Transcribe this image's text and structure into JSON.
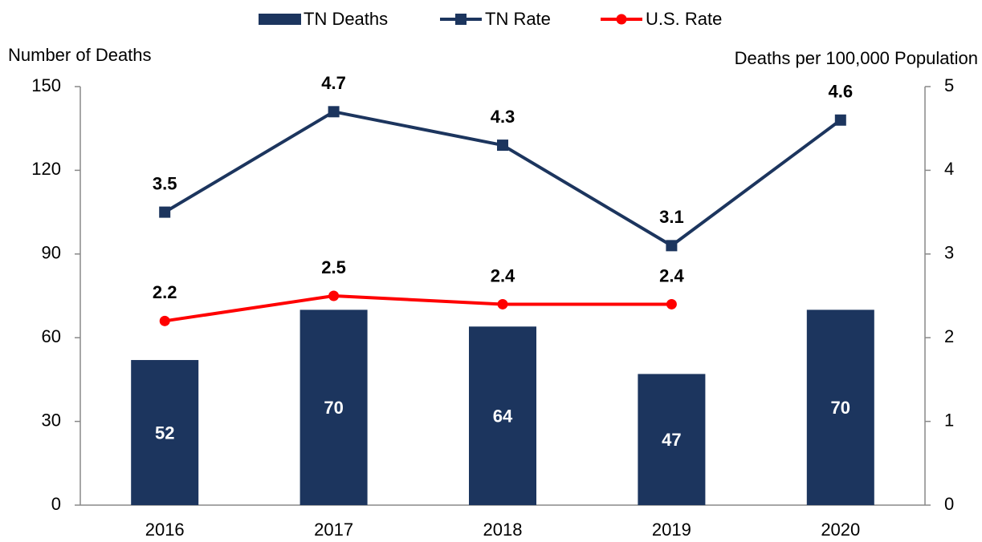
{
  "chart_data": {
    "type": "combo",
    "categories": [
      "2016",
      "2017",
      "2018",
      "2019",
      "2020"
    ],
    "ylabel": "Number of Deaths",
    "y2label": "Deaths per 100,000 Population",
    "ylim": [
      0,
      150
    ],
    "yticks": [
      0,
      30,
      60,
      90,
      120,
      150
    ],
    "y2lim": [
      0,
      5
    ],
    "y2ticks": [
      0,
      1,
      2,
      3,
      4,
      5
    ],
    "legend": "top",
    "series": [
      {
        "name": "TN Deaths",
        "type": "bar",
        "color": "#1c355e",
        "values": [
          52,
          70,
          64,
          47,
          70
        ]
      },
      {
        "name": "TN Rate",
        "type": "line",
        "marker": "square",
        "axis": "y2",
        "color": "#1c355e",
        "values": [
          3.5,
          4.7,
          4.3,
          3.1,
          4.6
        ]
      },
      {
        "name": "U.S. Rate",
        "type": "line",
        "marker": "circle",
        "axis": "y2",
        "color": "#ff0000",
        "values": [
          2.2,
          2.5,
          2.4,
          2.4,
          null
        ]
      }
    ]
  }
}
